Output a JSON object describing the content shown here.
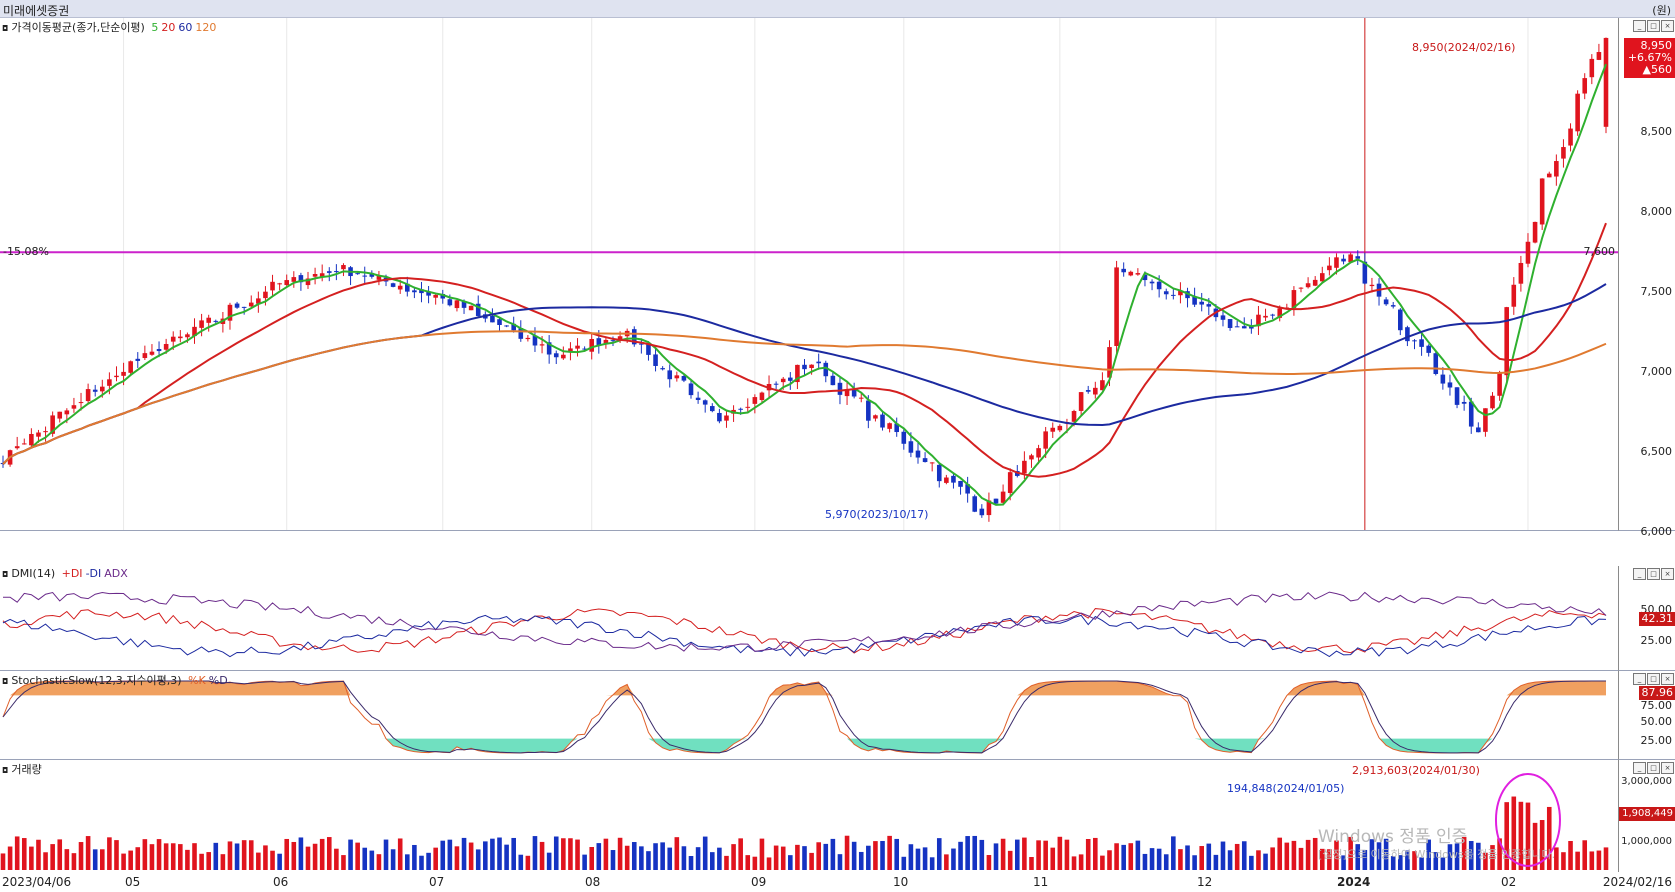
{
  "window": {
    "title": "미래에셋증권",
    "unit": "(원)"
  },
  "price_panel": {
    "legend": {
      "title": "가격이동평균(종가,단순이평)",
      "ma": [
        "5",
        "20",
        "60",
        "120"
      ]
    },
    "y_ticks": [
      "8,500",
      "8,000",
      "7,500",
      "7,000",
      "6,500",
      "6,000"
    ],
    "ref_line": {
      "value": 7600,
      "left_label": "-15.08%",
      "right_label": "7,600"
    },
    "high_annotation": "8,950(2024/02/16)",
    "low_annotation": "5,970(2023/10/17)",
    "current_badge": {
      "price": "8,950",
      "pct": "+6.67%",
      "change": "▲560"
    },
    "colors": {
      "up": "#e0141e",
      "down": "#1533c2",
      "ma5": "#2fb02f",
      "ma20": "#d42020",
      "ma60": "#1c2aa0",
      "ma120": "#e07a30",
      "ref": "#cc22cc"
    }
  },
  "dmi_panel": {
    "legend": {
      "title": "DMI(14)",
      "plus": "+DI",
      "minus": "-DI",
      "adx": "ADX"
    },
    "y_ticks": [
      "50.00",
      "25.00"
    ],
    "badge": "42.31"
  },
  "stoch_panel": {
    "legend": {
      "title": "StochasticSlow(12,3,지수이평,3)",
      "k": "%K",
      "d": "%D"
    },
    "y_ticks": [
      "75.00",
      "50.00",
      "25.00"
    ],
    "badge": "87.96"
  },
  "volume_panel": {
    "legend": {
      "title": "거래량"
    },
    "y_ticks": [
      "3,000,000",
      "1,000,000"
    ],
    "badge": "1,908,449",
    "max_annotation": "2,913,603(2024/01/30)",
    "ref_annotation": "194,848(2024/01/05)"
  },
  "x_axis": [
    "2023/04/06",
    "05",
    "06",
    "07",
    "08",
    "09",
    "10",
    "11",
    "12",
    "2024",
    "02",
    "2024/02/16"
  ],
  "watermark": {
    "line1": "Windows 정품 인증",
    "line2": "[설정]으로 이동하여 Windows를 정품 인증합니다."
  },
  "chart_data": {
    "type": "candlestick",
    "title": "미래에셋증권",
    "x_range": [
      "2023/04/06",
      "2024/02/16"
    ],
    "ylim": [
      5900,
      9000
    ],
    "anchors": [
      {
        "date": "2023/04/06",
        "close": 6300
      },
      {
        "date": "2023/05/02",
        "close": 6900
      },
      {
        "date": "2023/05/31",
        "close": 7400
      },
      {
        "date": "2023/06/12",
        "close": 7500
      },
      {
        "date": "2023/07/03",
        "close": 7300
      },
      {
        "date": "2023/07/25",
        "close": 6950
      },
      {
        "date": "2023/08/07",
        "close": 7100
      },
      {
        "date": "2023/08/25",
        "close": 6550
      },
      {
        "date": "2023/09/13",
        "close": 6900
      },
      {
        "date": "2023/10/17",
        "close": 5970
      },
      {
        "date": "2023/11/09",
        "close": 6800
      },
      {
        "date": "2023/11/13",
        "close": 7500
      },
      {
        "date": "2023/12/08",
        "close": 7100
      },
      {
        "date": "2023/12/28",
        "close": 7600
      },
      {
        "date": "2024/01/23",
        "close": 6450
      },
      {
        "date": "2024/02/01",
        "close": 7700
      },
      {
        "date": "2024/02/16",
        "close": 8950
      }
    ]
  }
}
